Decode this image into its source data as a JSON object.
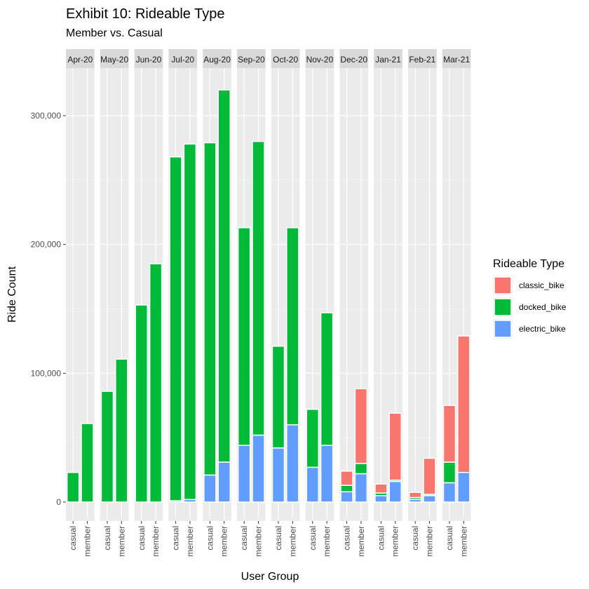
{
  "chart_data": {
    "type": "bar",
    "title": "Exhibit 10: Rideable Type",
    "subtitle": "Member vs. Casual",
    "xlabel": "User Group",
    "ylabel": "Ride Count",
    "ylim": [
      -10000,
      335000
    ],
    "yticks": [
      0,
      100000,
      200000,
      300000
    ],
    "ytick_labels": [
      "0",
      "100,000",
      "200,000",
      "300,000"
    ],
    "grid": true,
    "legend": {
      "title": "Rideable Type",
      "position": "right"
    },
    "categories": [
      "casual",
      "member"
    ],
    "facets": [
      "Apr-20",
      "May-20",
      "Jun-20",
      "Jul-20",
      "Aug-20",
      "Sep-20",
      "Oct-20",
      "Nov-20",
      "Dec-20",
      "Jan-21",
      "Feb-21",
      "Mar-21"
    ],
    "series": [
      {
        "name": "classic_bike",
        "color": "#F8766D",
        "values": [
          [
            0,
            0
          ],
          [
            0,
            0
          ],
          [
            0,
            0
          ],
          [
            0,
            0
          ],
          [
            0,
            0
          ],
          [
            0,
            0
          ],
          [
            0,
            0
          ],
          [
            0,
            0
          ],
          [
            11000,
            58000
          ],
          [
            7000,
            52000
          ],
          [
            4000,
            28000
          ],
          [
            44000,
            106000
          ]
        ]
      },
      {
        "name": "docked_bike",
        "color": "#00BA38",
        "values": [
          [
            23000,
            61000
          ],
          [
            86000,
            111000
          ],
          [
            153000,
            185000
          ],
          [
            267000,
            276000
          ],
          [
            258000,
            289000
          ],
          [
            169000,
            228000
          ],
          [
            79000,
            153000
          ],
          [
            45000,
            103000
          ],
          [
            5000,
            8000
          ],
          [
            2000,
            1000
          ],
          [
            1500,
            1000
          ],
          [
            16000,
            0
          ]
        ]
      },
      {
        "name": "electric_bike",
        "color": "#619CFF",
        "values": [
          [
            0,
            0
          ],
          [
            0,
            0
          ],
          [
            0,
            0
          ],
          [
            1000,
            2000
          ],
          [
            21000,
            31000
          ],
          [
            44000,
            52000
          ],
          [
            42000,
            60000
          ],
          [
            27000,
            44000
          ],
          [
            8000,
            22000
          ],
          [
            5000,
            16000
          ],
          [
            2000,
            5000
          ],
          [
            15000,
            23000
          ]
        ]
      }
    ]
  }
}
